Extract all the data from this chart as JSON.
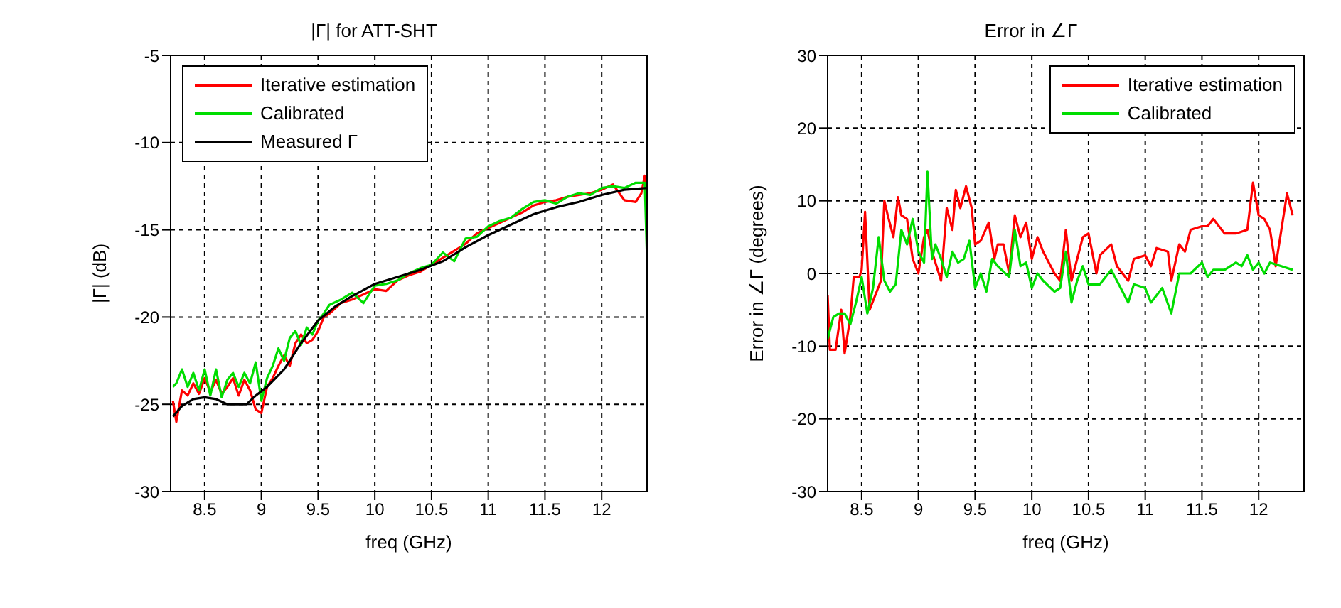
{
  "chart_data": [
    {
      "type": "line",
      "title": "|Γ| for ATT-SHT",
      "xlabel": "freq (GHz)",
      "ylabel": "|Γ| (dB)",
      "xlim": [
        8.2,
        12.4
      ],
      "xticks": [
        8.5,
        9,
        9.5,
        10,
        10.5,
        11,
        11.5,
        12
      ],
      "ylim": [
        -30,
        -5
      ],
      "yticks": [
        -30,
        -25,
        -20,
        -15,
        -10,
        -5
      ],
      "grid": true,
      "legend": "top left",
      "series": [
        {
          "name": "Iterative estimation",
          "color": "#ff0000",
          "x": [
            8.22,
            8.25,
            8.3,
            8.35,
            8.4,
            8.45,
            8.5,
            8.55,
            8.6,
            8.65,
            8.7,
            8.75,
            8.8,
            8.85,
            8.9,
            8.95,
            9.0,
            9.05,
            9.1,
            9.15,
            9.2,
            9.25,
            9.3,
            9.35,
            9.4,
            9.45,
            9.5,
            9.55,
            9.6,
            9.7,
            9.8,
            9.9,
            10.0,
            10.1,
            10.2,
            10.3,
            10.4,
            10.5,
            10.6,
            10.7,
            10.8,
            10.9,
            11.0,
            11.1,
            11.2,
            11.3,
            11.4,
            11.5,
            11.6,
            11.7,
            11.8,
            11.9,
            12.0,
            12.1,
            12.2,
            12.3,
            12.35,
            12.38,
            12.4
          ],
          "values": [
            -24.8,
            -26,
            -24.2,
            -24.5,
            -23.8,
            -24.4,
            -23.5,
            -24.3,
            -23.6,
            -24.4,
            -24,
            -23.5,
            -24.5,
            -23.6,
            -24.2,
            -25.3,
            -25.5,
            -24,
            -23.5,
            -22.8,
            -22.2,
            -22.8,
            -21.5,
            -21,
            -21.5,
            -21.3,
            -20.8,
            -20,
            -19.8,
            -19.2,
            -19,
            -18.7,
            -18.4,
            -18.5,
            -17.9,
            -17.6,
            -17.4,
            -17,
            -16.6,
            -16.2,
            -15.8,
            -15.2,
            -14.9,
            -14.6,
            -14.3,
            -14,
            -13.6,
            -13.4,
            -13.3,
            -13.1,
            -13,
            -12.9,
            -12.7,
            -12.4,
            -13.3,
            -13.4,
            -12.9,
            -11.9,
            -13
          ]
        },
        {
          "name": "Calibrated",
          "color": "#00dd00",
          "x": [
            8.22,
            8.25,
            8.3,
            8.35,
            8.4,
            8.45,
            8.5,
            8.55,
            8.6,
            8.65,
            8.7,
            8.75,
            8.8,
            8.85,
            8.9,
            8.95,
            9.0,
            9.05,
            9.1,
            9.15,
            9.2,
            9.25,
            9.3,
            9.35,
            9.4,
            9.45,
            9.5,
            9.55,
            9.6,
            9.7,
            9.8,
            9.9,
            10.0,
            10.1,
            10.2,
            10.3,
            10.4,
            10.5,
            10.6,
            10.7,
            10.8,
            10.9,
            11.0,
            11.1,
            11.2,
            11.3,
            11.4,
            11.5,
            11.6,
            11.7,
            11.8,
            11.9,
            12.0,
            12.1,
            12.2,
            12.3,
            12.38,
            12.4
          ],
          "values": [
            -24,
            -23.8,
            -23,
            -24,
            -23.2,
            -24.2,
            -23,
            -24.5,
            -23,
            -24.6,
            -23.6,
            -23.2,
            -24,
            -23.2,
            -23.8,
            -22.6,
            -24.8,
            -23.5,
            -22.8,
            -21.8,
            -22.5,
            -21.2,
            -20.8,
            -21.6,
            -20.6,
            -21,
            -20.2,
            -19.8,
            -19.3,
            -19,
            -18.6,
            -19.2,
            -18.2,
            -18.1,
            -17.9,
            -17.5,
            -17.2,
            -17,
            -16.3,
            -16.8,
            -15.5,
            -15.4,
            -14.8,
            -14.5,
            -14.3,
            -13.8,
            -13.4,
            -13.3,
            -13.5,
            -13.1,
            -12.9,
            -13,
            -12.6,
            -12.5,
            -12.6,
            -12.3,
            -12.3,
            -16.7
          ]
        },
        {
          "name": "Measured Γ",
          "color": "#000000",
          "x": [
            8.22,
            8.3,
            8.4,
            8.5,
            8.6,
            8.7,
            8.87,
            8.95,
            9.05,
            9.2,
            9.35,
            9.5,
            9.65,
            9.8,
            10.0,
            10.2,
            10.4,
            10.6,
            10.8,
            11.0,
            11.2,
            11.4,
            11.6,
            11.8,
            12.0,
            12.2,
            12.4
          ],
          "values": [
            -25.7,
            -25.1,
            -24.7,
            -24.6,
            -24.7,
            -25,
            -25,
            -24.5,
            -24,
            -23,
            -21.5,
            -20.2,
            -19.4,
            -18.8,
            -18.1,
            -17.7,
            -17.3,
            -16.8,
            -16,
            -15.3,
            -14.7,
            -14.1,
            -13.7,
            -13.4,
            -13,
            -12.7,
            -12.6
          ]
        }
      ]
    },
    {
      "type": "line",
      "title": "Error in ∠Γ",
      "xlabel": "freq (GHz)",
      "ylabel": "Error in ∠Γ (degrees)",
      "xlim": [
        8.2,
        12.4
      ],
      "xticks": [
        8.5,
        9,
        9.5,
        10,
        10.5,
        11,
        11.5,
        12
      ],
      "ylim": [
        -30,
        30
      ],
      "yticks": [
        -30,
        -20,
        -10,
        0,
        10,
        20,
        30
      ],
      "grid": true,
      "legend": "top right",
      "series": [
        {
          "name": "Iterative estimation",
          "color": "#ff0000",
          "x": [
            8.2,
            8.22,
            8.27,
            8.32,
            8.35,
            8.4,
            8.43,
            8.48,
            8.5,
            8.53,
            8.57,
            8.62,
            8.67,
            8.7,
            8.73,
            8.78,
            8.82,
            8.85,
            8.9,
            8.95,
            9.0,
            9.05,
            9.08,
            9.12,
            9.2,
            9.25,
            9.3,
            9.33,
            9.37,
            9.42,
            9.47,
            9.5,
            9.55,
            9.62,
            9.67,
            9.7,
            9.75,
            9.8,
            9.85,
            9.9,
            9.95,
            10.0,
            10.05,
            10.1,
            10.2,
            10.25,
            10.3,
            10.35,
            10.45,
            10.5,
            10.57,
            10.6,
            10.7,
            10.75,
            10.85,
            10.9,
            11.0,
            11.05,
            11.1,
            11.2,
            11.23,
            11.3,
            11.35,
            11.4,
            11.5,
            11.55,
            11.6,
            11.7,
            11.8,
            11.9,
            11.95,
            12.0,
            12.05,
            12.1,
            12.15,
            12.2,
            12.25,
            12.3
          ],
          "values": [
            -3,
            -10.5,
            -10.5,
            -5,
            -11,
            -6,
            -0.5,
            -0.5,
            0.5,
            8.5,
            -5,
            -3,
            -1,
            10,
            8,
            5,
            10.5,
            8,
            7.5,
            2,
            0,
            5,
            6,
            3,
            -1,
            9,
            6,
            11.5,
            9,
            12,
            9,
            4,
            4.5,
            7,
            2,
            4,
            4,
            0,
            8,
            5,
            7,
            2,
            5,
            3,
            0,
            -1,
            6,
            -1,
            5,
            5.5,
            0,
            2.5,
            4,
            1,
            -1,
            2,
            2.5,
            1,
            3.5,
            3,
            -1,
            4,
            3,
            6,
            6.5,
            6.5,
            7.5,
            5.5,
            5.5,
            6,
            12.5,
            8,
            7.5,
            6,
            1,
            6,
            11,
            8
          ]
        },
        {
          "name": "Calibrated",
          "color": "#00dd00",
          "x": [
            8.2,
            8.25,
            8.3,
            8.35,
            8.4,
            8.45,
            8.5,
            8.55,
            8.6,
            8.65,
            8.7,
            8.75,
            8.8,
            8.85,
            8.9,
            8.95,
            9.0,
            9.05,
            9.08,
            9.12,
            9.15,
            9.2,
            9.25,
            9.3,
            9.35,
            9.4,
            9.45,
            9.5,
            9.55,
            9.6,
            9.65,
            9.7,
            9.8,
            9.85,
            9.9,
            9.95,
            10.0,
            10.05,
            10.1,
            10.2,
            10.25,
            10.3,
            10.35,
            10.4,
            10.45,
            10.5,
            10.6,
            10.7,
            10.8,
            10.85,
            10.9,
            11.0,
            11.05,
            11.15,
            11.23,
            11.3,
            11.4,
            11.5,
            11.55,
            11.6,
            11.7,
            11.8,
            11.85,
            11.9,
            11.95,
            12.0,
            12.05,
            12.1,
            12.2,
            12.3
          ],
          "values": [
            -9,
            -6,
            -5.5,
            -5.5,
            -7,
            -4,
            -0.5,
            -5.5,
            -2,
            5,
            -1,
            -2.5,
            -1.5,
            6,
            4,
            7.5,
            3,
            1.5,
            14,
            2,
            4,
            2,
            -0.5,
            3,
            1.5,
            2,
            4.5,
            -2,
            0,
            -2.5,
            2,
            1,
            -0.5,
            6,
            1,
            1.5,
            -2,
            0,
            -1,
            -2.5,
            -2,
            3,
            -4,
            -1,
            1,
            -1.5,
            -1.5,
            0.5,
            -2.5,
            -4,
            -1.5,
            -2,
            -4,
            -2,
            -5.5,
            0,
            0,
            1.5,
            -0.5,
            0.5,
            0.5,
            1.5,
            1,
            2.5,
            0.5,
            1.5,
            0,
            1.5,
            1,
            0.5
          ]
        }
      ]
    }
  ]
}
